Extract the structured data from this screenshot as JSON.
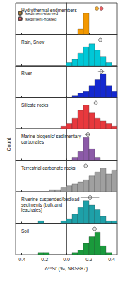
{
  "chart_data": [
    {
      "type": "histogram",
      "title": "Hydrothermal endmembers",
      "color": "#f39800",
      "bins": [
        0.1,
        0.15,
        0.2
      ],
      "counts": [
        1,
        4
      ],
      "points": [
        {
          "name": "sediment-starved",
          "value": 0.27,
          "color": "#f39800"
        },
        {
          "name": "sediment-hosted",
          "value": 0.31,
          "color": "#e8383d"
        }
      ],
      "legend": "upper left",
      "xlim": [
        -0.45,
        0.45
      ],
      "xticks": [
        -0.4,
        -0.2,
        {
          "value": 0,
          "label": "0.0"
        },
        0.2,
        0.4
      ],
      "ylim": [
        0,
        6
      ],
      "tick_labels": false,
      "grid": false
    },
    {
      "type": "histogram",
      "title": "Rain, Snow",
      "color": "#00c8d7",
      "bins": [
        0,
        0.05,
        0.1,
        0.15,
        0.2,
        0.25,
        0.3,
        0.35,
        0.4
      ],
      "counts": [
        1,
        2,
        4,
        6,
        7,
        5,
        3,
        1
      ],
      "mean": 0.3,
      "error": 0.03,
      "xlim": [
        -0.45,
        0.45
      ],
      "xticks": [
        -0.4,
        -0.2,
        {
          "value": 0,
          "label": "0.0"
        },
        0.2,
        0.4
      ],
      "ylim": [
        0,
        10
      ],
      "tick_labels": false,
      "grid": false
    },
    {
      "type": "histogram",
      "title": "River",
      "color": "#1428d0",
      "bins": [
        0.05,
        0.1,
        0.15,
        0.2,
        0.25,
        0.3,
        0.35,
        0.4,
        0.45
      ],
      "counts": [
        1,
        2,
        3,
        6,
        9,
        12,
        6,
        3
      ],
      "mean": 0.31,
      "error": 0.03,
      "xlim": [
        -0.45,
        0.45
      ],
      "xticks": [
        -0.4,
        -0.2,
        {
          "value": 0,
          "label": "0.0"
        },
        0.2,
        0.4
      ],
      "ylim": [
        0,
        16
      ],
      "tick_labels": false,
      "grid": false
    },
    {
      "type": "histogram",
      "title": "Silicate rocks",
      "color": "#e8383d",
      "bins": [
        -0.05,
        0,
        0.05,
        0.1,
        0.15,
        0.2,
        0.25,
        0.3,
        0.35,
        0.4,
        0.45
      ],
      "counts": [
        1,
        2,
        4,
        7,
        9,
        6,
        4,
        3,
        2,
        1
      ],
      "mean": 0.26,
      "error": 0.05,
      "xlim": [
        -0.45,
        0.45
      ],
      "xticks": [
        -0.4,
        -0.2,
        {
          "value": 0,
          "label": "0.0"
        },
        0.2,
        0.4
      ],
      "ylim": [
        0,
        12
      ],
      "tick_labels": false,
      "grid": false
    },
    {
      "type": "histogram",
      "title": "Marine biogenic/ sedimentary carbonates",
      "color": "#8c5aa8",
      "bins": [
        0.05,
        0.1,
        0.15,
        0.2,
        0.25,
        0.3
      ],
      "counts": [
        1,
        3,
        8,
        4,
        1
      ],
      "mean": 0.19,
      "error": 0.02,
      "ylabel": "Count",
      "xlim": [
        -0.45,
        0.45
      ],
      "xticks": [
        -0.4,
        -0.2,
        {
          "value": 0,
          "label": "0.0"
        },
        0.2,
        0.4
      ],
      "ylim": [
        0,
        11
      ],
      "tick_labels": false,
      "grid": false
    },
    {
      "type": "histogram",
      "title": "Terrestrial carbonate rocks",
      "color": "#a0a0a0",
      "bins": [
        -0.15,
        -0.1,
        -0.05,
        0,
        0.05,
        0.1,
        0.15,
        0.2,
        0.25,
        0.3,
        0.35,
        0.4,
        0.45
      ],
      "counts": [
        1,
        1,
        2,
        3,
        4,
        5,
        6,
        8,
        10,
        12,
        9,
        11
      ],
      "mean": 0.17,
      "error": 0.1,
      "xlim": [
        -0.45,
        0.45
      ],
      "xticks": [
        -0.4,
        -0.2,
        {
          "value": 0,
          "label": "0.0"
        },
        0.2,
        0.4
      ],
      "ylim": [
        0,
        16
      ],
      "tick_labels": false,
      "grid": false
    },
    {
      "type": "histogram",
      "title": "Riverine suspended/bedload sediments (bulk and leachates)",
      "color": "#1ea0a8",
      "bins": [
        -0.25,
        -0.2,
        -0.15,
        -0.1,
        -0.05,
        0,
        0.05,
        0.1,
        0.15,
        0.2,
        0.25,
        0.3,
        0.35,
        0.4,
        0.45
      ],
      "counts": [
        1,
        0,
        0,
        0,
        1,
        2,
        4,
        7,
        10,
        8,
        6,
        3,
        1,
        1
      ],
      "mean": 0.21,
      "error": 0.08,
      "xlim": [
        -0.45,
        0.45
      ],
      "xticks": [
        -0.4,
        -0.2,
        {
          "value": 0,
          "label": "0.0"
        },
        0.2,
        0.4
      ],
      "ylim": [
        0,
        14
      ],
      "tick_labels": false,
      "grid": false
    },
    {
      "type": "histogram",
      "title": "Soil",
      "color": "#1a9a3c",
      "bins": [
        -0.25,
        -0.2,
        -0.15,
        -0.1,
        -0.05,
        0,
        0.05,
        0.1,
        0.15,
        0.2,
        0.25,
        0.3,
        0.35,
        0.4
      ],
      "counts": [
        1,
        1,
        0,
        0,
        0,
        0,
        1,
        2,
        5,
        8,
        10,
        4,
        1
      ],
      "mean": 0.25,
      "error": 0.07,
      "xlabel": "δ⁸⁸Sr (‰, NBS987)",
      "xlim": [
        -0.45,
        0.45
      ],
      "xticks": [
        -0.4,
        -0.2,
        {
          "value": 0,
          "label": "0.0"
        },
        0.2,
        0.4
      ],
      "ylim": [
        0,
        14
      ],
      "tick_labels": "x",
      "grid": false
    }
  ]
}
